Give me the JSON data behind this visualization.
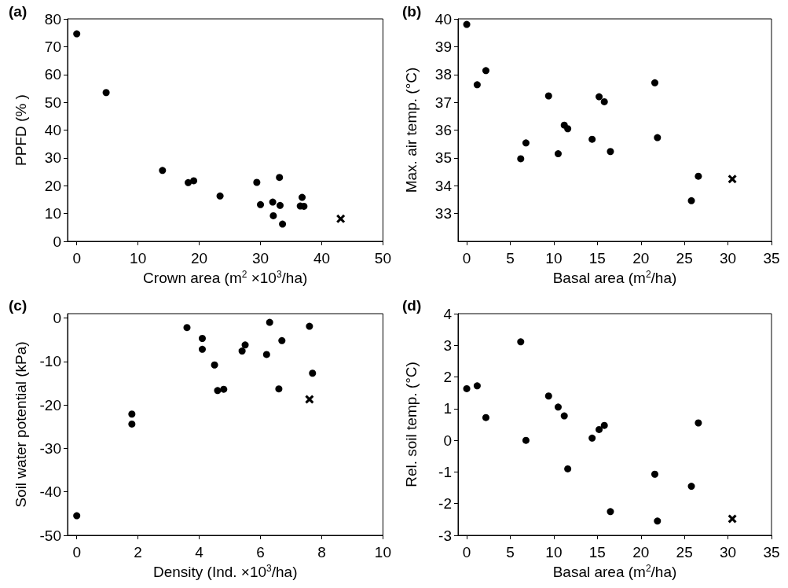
{
  "chart_data": [
    {
      "type": "scatter",
      "title": "(a)",
      "xlabel": "Crown area (m$^{2}$ ×10$^{3}$/ha)",
      "ylabel": "PPFD (% )",
      "xlim": [
        -1.5,
        50
      ],
      "xticks": [
        0,
        10,
        20,
        30,
        40,
        50
      ],
      "ylim": [
        0,
        80
      ],
      "yticks": [
        0,
        10,
        20,
        30,
        40,
        50,
        60,
        70,
        80
      ],
      "series": [
        {
          "color": "#000000",
          "marker": "circle",
          "x": [
            0,
            4.8,
            14,
            18.2,
            19.1,
            23.4,
            29.4,
            30,
            32,
            32.1,
            33.1,
            33.2,
            33.6,
            36.8,
            36.5,
            37.1
          ],
          "values": [
            74.6,
            53.5,
            25.5,
            21.1,
            21.8,
            16.3,
            21.2,
            13.2,
            14.1,
            9.2,
            23,
            12.9,
            6.2,
            15.8,
            12.7,
            12.6
          ]
        },
        {
          "color": "#000000",
          "marker": "cross",
          "x": [
            43.1
          ],
          "values": [
            8.1
          ]
        }
      ]
    },
    {
      "type": "scatter",
      "title": "(b)",
      "xlabel": "Basal area (m$^{2}$/ha)",
      "ylabel": "Max. air temp. (°C)",
      "xlim": [
        -1,
        35
      ],
      "xticks": [
        0,
        5,
        10,
        15,
        20,
        25,
        30,
        35
      ],
      "ylim": [
        32,
        40
      ],
      "yticks": [
        33,
        34,
        35,
        36,
        37,
        38,
        39,
        40
      ],
      "series": [
        {
          "color": "#000000",
          "marker": "circle",
          "x": [
            0,
            1.2,
            2.2,
            6.2,
            6.8,
            9.4,
            10.5,
            11.2,
            11.6,
            14.4,
            15.2,
            15.8,
            16.5,
            21.6,
            21.9,
            25.8,
            26.6
          ],
          "values": [
            39.8,
            37.63,
            38.14,
            34.97,
            35.54,
            37.23,
            35.15,
            36.18,
            36.05,
            35.67,
            37.2,
            37.02,
            35.23,
            37.7,
            35.73,
            33.46,
            34.34
          ]
        },
        {
          "color": "#000000",
          "marker": "cross",
          "x": [
            30.5
          ],
          "values": [
            34.24
          ]
        }
      ]
    },
    {
      "type": "scatter",
      "title": "(c)",
      "xlabel": "Density (Ind. ×10$^{3}$/ha)",
      "ylabel": "Soil water potential (kPa)",
      "xlim": [
        -0.3,
        10
      ],
      "xticks": [
        0,
        2,
        4,
        6,
        8,
        10
      ],
      "ylim": [
        -50,
        1
      ],
      "yticks": [
        -50,
        -40,
        -30,
        -20,
        -10,
        0
      ],
      "series": [
        {
          "color": "#000000",
          "marker": "circle",
          "x": [
            0,
            1.8,
            1.8,
            3.6,
            4.1,
            4.1,
            4.5,
            4.6,
            4.8,
            5.4,
            5.5,
            6.2,
            6.3,
            6.6,
            6.7,
            7.6,
            7.7
          ],
          "values": [
            -45.5,
            -22.1,
            -24.4,
            -2.2,
            -4.7,
            -7.2,
            -10.8,
            -16.7,
            -16.4,
            -7.6,
            -6.2,
            -8.4,
            -1,
            -16.3,
            -5.2,
            -1.9,
            -12.7
          ]
        },
        {
          "color": "#000000",
          "marker": "cross",
          "x": [
            7.6
          ],
          "values": [
            -18.7
          ]
        }
      ]
    },
    {
      "type": "scatter",
      "title": "(d)",
      "xlabel": "Basal area (m$^{2}$/ha)",
      "ylabel": "Rel. soil temp. (°C)",
      "xlim": [
        -1,
        35
      ],
      "xticks": [
        0,
        5,
        10,
        15,
        20,
        25,
        30,
        35
      ],
      "ylim": [
        -3,
        4
      ],
      "yticks": [
        -3,
        -2,
        -1,
        0,
        1,
        2,
        3,
        4
      ],
      "series": [
        {
          "color": "#000000",
          "marker": "circle",
          "x": [
            0,
            1.2,
            2.2,
            6.2,
            6.8,
            9.4,
            10.5,
            11.2,
            11.6,
            14.4,
            15.2,
            15.8,
            16.5,
            21.6,
            21.9,
            25.8,
            26.6
          ],
          "values": [
            1.63,
            1.72,
            0.72,
            3.11,
            0,
            1.4,
            1.05,
            0.77,
            -0.9,
            0.07,
            0.34,
            0.47,
            -2.25,
            -1.07,
            -2.55,
            -1.45,
            0.55
          ]
        },
        {
          "color": "#000000",
          "marker": "cross",
          "x": [
            30.5
          ],
          "values": [
            -2.48
          ]
        }
      ]
    }
  ]
}
